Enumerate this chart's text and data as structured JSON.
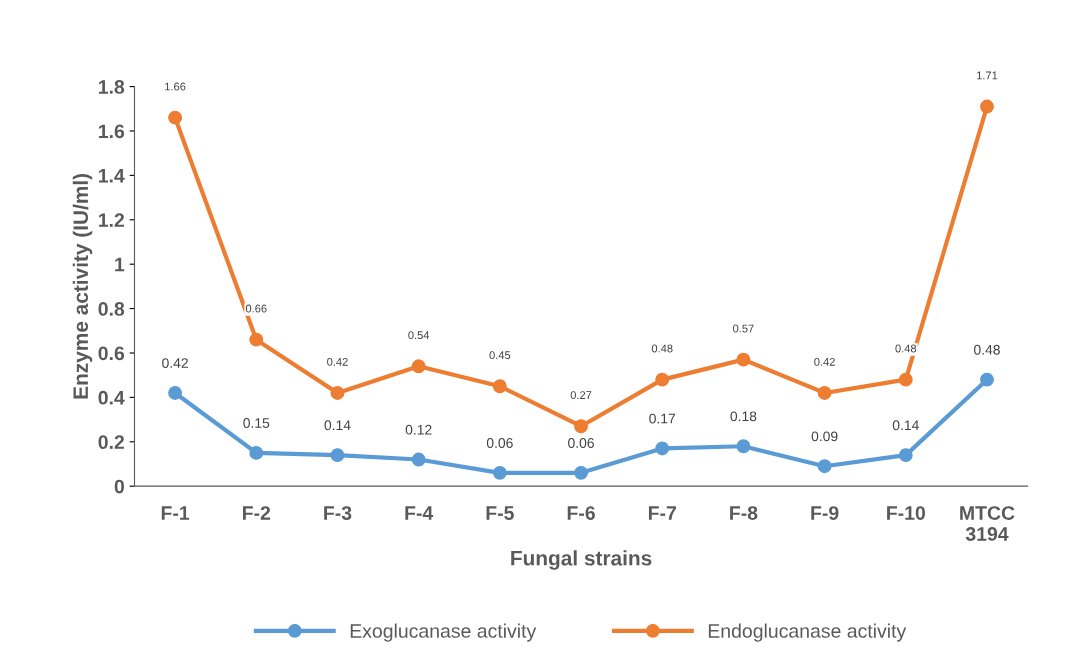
{
  "chart_data": {
    "type": "line",
    "xlabel": "Fungal strains",
    "ylabel": "Enzyme activity (IU/ml)",
    "categories": [
      "F-1",
      "F-2",
      "F-3",
      "F-4",
      "F-5",
      "F-6",
      "F-7",
      "F-8",
      "F-9",
      "F-10",
      "MTCC\n3194"
    ],
    "series": [
      {
        "name": "Exoglucanase activity",
        "color": "#5b9bd5",
        "values": [
          0.42,
          0.15,
          0.14,
          0.12,
          0.06,
          0.06,
          0.17,
          0.18,
          0.09,
          0.14,
          0.48
        ]
      },
      {
        "name": "Endoglucanase activity",
        "color": "#ed7d31",
        "values": [
          1.66,
          0.66,
          0.42,
          0.54,
          0.45,
          0.27,
          0.48,
          0.57,
          0.42,
          0.48,
          1.71
        ]
      }
    ],
    "ylim": [
      0,
      1.8
    ],
    "yticks": [
      0,
      0.2,
      0.4,
      0.6,
      0.8,
      1,
      1.2,
      1.4,
      1.6,
      1.8
    ],
    "data_labels": true,
    "legend": "bottom",
    "grid": false,
    "marker": "circle",
    "line_style": "solid"
  }
}
